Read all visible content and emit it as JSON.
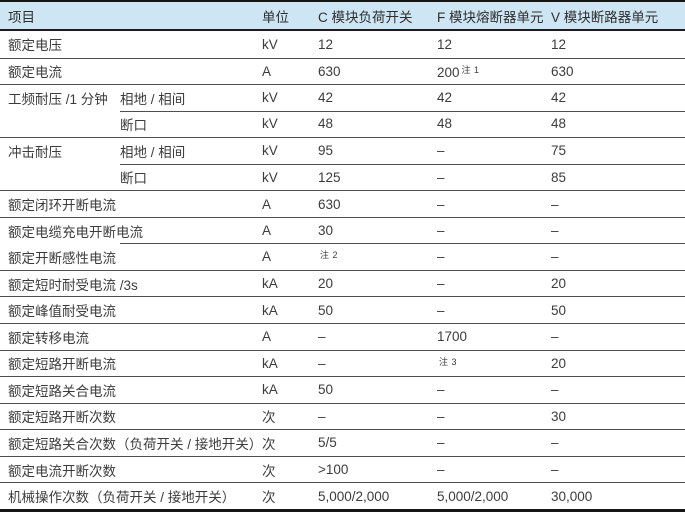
{
  "table": {
    "header": {
      "item": "项目",
      "unit": "单位",
      "c": "C 模块负荷开关",
      "f": "F 模块熔断器单元",
      "v": "V 模块断路器单元"
    },
    "rows": [
      {
        "item": "额定电压",
        "unit": "kV",
        "c": "12",
        "f": "12",
        "v": "12"
      },
      {
        "item": "额定电流",
        "unit": "A",
        "c": "630",
        "f": "200",
        "f_note": "注 1",
        "v": "630"
      },
      {
        "item": "工频耐压 /1 分钟",
        "sub": "相地 / 相间",
        "unit": "kV",
        "c": "42",
        "f": "42",
        "v": "42"
      },
      {
        "item": "",
        "sub": "断口",
        "unit": "kV",
        "c": "48",
        "f": "48",
        "v": "48",
        "partial_separator": true
      },
      {
        "item": "冲击耐压",
        "sub": "相地 / 相间",
        "unit": "kV",
        "c": "95",
        "f": "–",
        "v": "75"
      },
      {
        "item": "",
        "sub": "断口",
        "unit": "kV",
        "c": "125",
        "f": "–",
        "v": "85",
        "partial_separator": true
      },
      {
        "item": "额定闭环开断电流",
        "unit": "A",
        "c": "630",
        "f": "–",
        "v": "–"
      },
      {
        "item": "额定电缆充电开断电流",
        "unit": "A",
        "c": "30",
        "f": "–",
        "v": "–"
      },
      {
        "item": "额定开断感性电流",
        "unit": "A",
        "c": "",
        "c_note": "注 2",
        "f": "–",
        "v": "–",
        "partial_separator": true
      },
      {
        "item": "额定短时耐受电流 /3s",
        "unit": "kA",
        "c": "20",
        "f": "–",
        "v": "20"
      },
      {
        "item": "额定峰值耐受电流",
        "unit": "kA",
        "c": "50",
        "f": "–",
        "v": "50"
      },
      {
        "item": "额定转移电流",
        "unit": "A",
        "c": "–",
        "f": "1700",
        "v": "–"
      },
      {
        "item": "额定短路开断电流",
        "unit": "kA",
        "c": "–",
        "f": "",
        "f_note": "注 3",
        "v": "20"
      },
      {
        "item": "额定短路关合电流",
        "unit": "kA",
        "c": "50",
        "f": "–",
        "v": "–"
      },
      {
        "item": "额定短路开断次数",
        "unit": "次",
        "c": "–",
        "f": "–",
        "v": "30"
      },
      {
        "item": "额定短路关合次数（负荷开关 / 接地开关）",
        "unit": "次",
        "c": "5/5",
        "f": "–",
        "v": "–"
      },
      {
        "item": "额定电流开断次数",
        "unit": "次",
        "c": ">100",
        "f": "–",
        "v": "–"
      },
      {
        "item": "机械操作次数（负荷开关 / 接地开关）",
        "unit": "次",
        "c": "5,000/2,000",
        "f": "5,000/2,000",
        "v": "30,000"
      }
    ]
  }
}
